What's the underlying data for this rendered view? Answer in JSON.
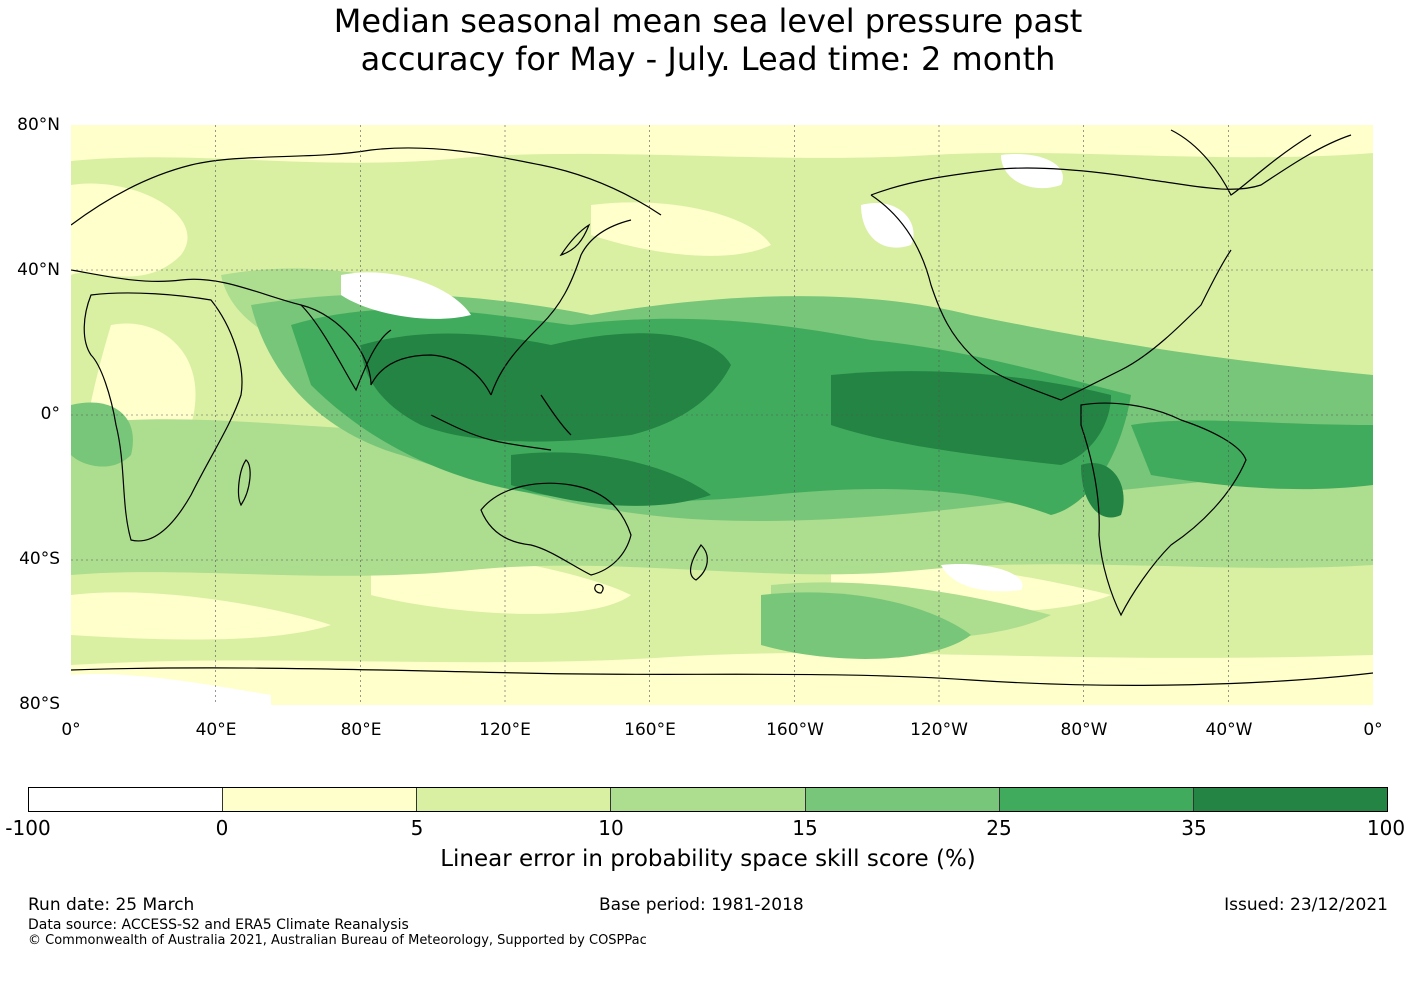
{
  "title": {
    "line1": "Median seasonal mean sea level pressure past",
    "line2": "accuracy for May - July. Lead time: 2 month"
  },
  "map": {
    "lat_labels": [
      "80°N",
      "40°N",
      "0°",
      "40°S",
      "80°S"
    ],
    "lon_labels": [
      "0°",
      "40°E",
      "80°E",
      "120°E",
      "160°E",
      "160°W",
      "120°W",
      "80°W",
      "40°W",
      "0°"
    ]
  },
  "legend": {
    "colors": [
      "#ffffff",
      "#ffffcc",
      "#d9f0a3",
      "#addd8e",
      "#78c679",
      "#41ab5d",
      "#238443"
    ],
    "ticks": [
      "-100",
      "0",
      "5",
      "10",
      "15",
      "25",
      "35",
      "100"
    ],
    "label": "Linear error in probability space skill score (%)"
  },
  "footer": {
    "run_date": "Run date: 25 March",
    "base_period": "Base period: 1981-2018",
    "issued": "Issued: 23/12/2021",
    "data_source": "Data source: ACCESS-S2 and ERA5 Climate Reanalysis",
    "copyright": "© Commonwealth of Australia 2021, Australian Bureau of Meteorology, Supported by COSPPac"
  }
}
